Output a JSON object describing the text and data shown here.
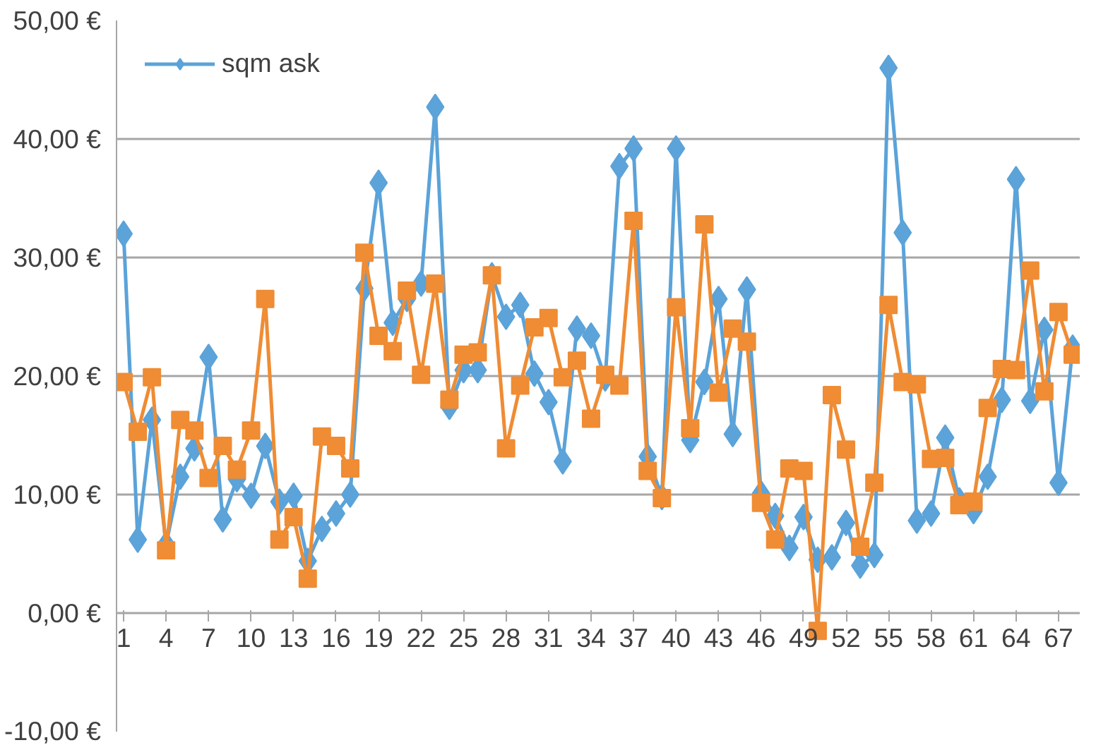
{
  "chart_data": {
    "type": "line",
    "categories": [
      "1",
      null,
      null,
      "4",
      null,
      null,
      "7",
      null,
      null,
      "10",
      null,
      null,
      "13",
      null,
      null,
      "16",
      null,
      null,
      "19",
      null,
      null,
      "22",
      null,
      null,
      "25",
      null,
      null,
      "28",
      null,
      null,
      "31",
      null,
      null,
      "34",
      null,
      null,
      "37",
      null,
      null,
      "40",
      null,
      null,
      "43",
      null,
      null,
      "46",
      null,
      null,
      "49",
      null,
      null,
      "52",
      null,
      null,
      "55",
      null,
      null,
      "58",
      null,
      null,
      "61",
      null,
      null,
      "64",
      null,
      null,
      "67",
      null
    ],
    "series": [
      {
        "name": "sqm ask",
        "color": "#5ba3d9",
        "marker": "diamond",
        "values": [
          32.0,
          6.2,
          16.3,
          5.8,
          11.5,
          13.9,
          21.6,
          7.9,
          11.3,
          9.9,
          14.1,
          9.4,
          9.9,
          4.4,
          7.1,
          8.4,
          10.0,
          27.4,
          36.3,
          24.5,
          26.5,
          27.8,
          42.7,
          17.4,
          20.5,
          20.5,
          28.5,
          25.0,
          26.0,
          20.2,
          17.8,
          12.8,
          24.0,
          23.4,
          19.8,
          37.7,
          39.2,
          13.2,
          9.8,
          39.2,
          14.6,
          19.5,
          26.5,
          15.1,
          27.3,
          10.1,
          8.2,
          5.5,
          8.1,
          4.5,
          4.7,
          7.6,
          4.0,
          4.9,
          46.0,
          32.1,
          7.8,
          8.4,
          14.8,
          9.5,
          8.6,
          11.5,
          18.0,
          36.6,
          17.9,
          23.9,
          11.0,
          22.4
        ]
      },
      {
        "color": "#ef8c34",
        "marker": "square",
        "values": [
          19.5,
          15.3,
          19.9,
          5.3,
          16.3,
          15.4,
          11.4,
          14.1,
          12.1,
          15.4,
          26.5,
          6.2,
          8.1,
          2.9,
          14.9,
          14.1,
          12.2,
          30.4,
          23.4,
          22.1,
          27.2,
          20.1,
          27.8,
          18.0,
          21.8,
          22.0,
          28.5,
          13.9,
          19.2,
          24.1,
          24.9,
          19.9,
          21.3,
          16.4,
          20.1,
          19.2,
          33.1,
          12.0,
          9.7,
          25.8,
          15.6,
          32.8,
          18.6,
          24.0,
          22.9,
          9.3,
          6.2,
          12.2,
          12.0,
          -1.5,
          18.4,
          13.8,
          5.6,
          11.0,
          26.0,
          19.5,
          19.3,
          13.0,
          13.1,
          9.1,
          9.4,
          17.3,
          20.6,
          20.5,
          28.9,
          18.7,
          25.4,
          21.8
        ]
      }
    ],
    "ylim": [
      -10,
      50
    ],
    "yticks": [
      {
        "value": -10,
        "label": "-10,00 €"
      },
      {
        "value": 0,
        "label": "0,00 €"
      },
      {
        "value": 10,
        "label": "10,00 €"
      },
      {
        "value": 20,
        "label": "20,00 €"
      },
      {
        "value": 30,
        "label": "30,00 €"
      },
      {
        "value": 40,
        "label": "40,00 €"
      },
      {
        "value": 50,
        "label": "50,00 €"
      }
    ],
    "grid": "y",
    "legend": "top left",
    "line_style": "solid"
  }
}
